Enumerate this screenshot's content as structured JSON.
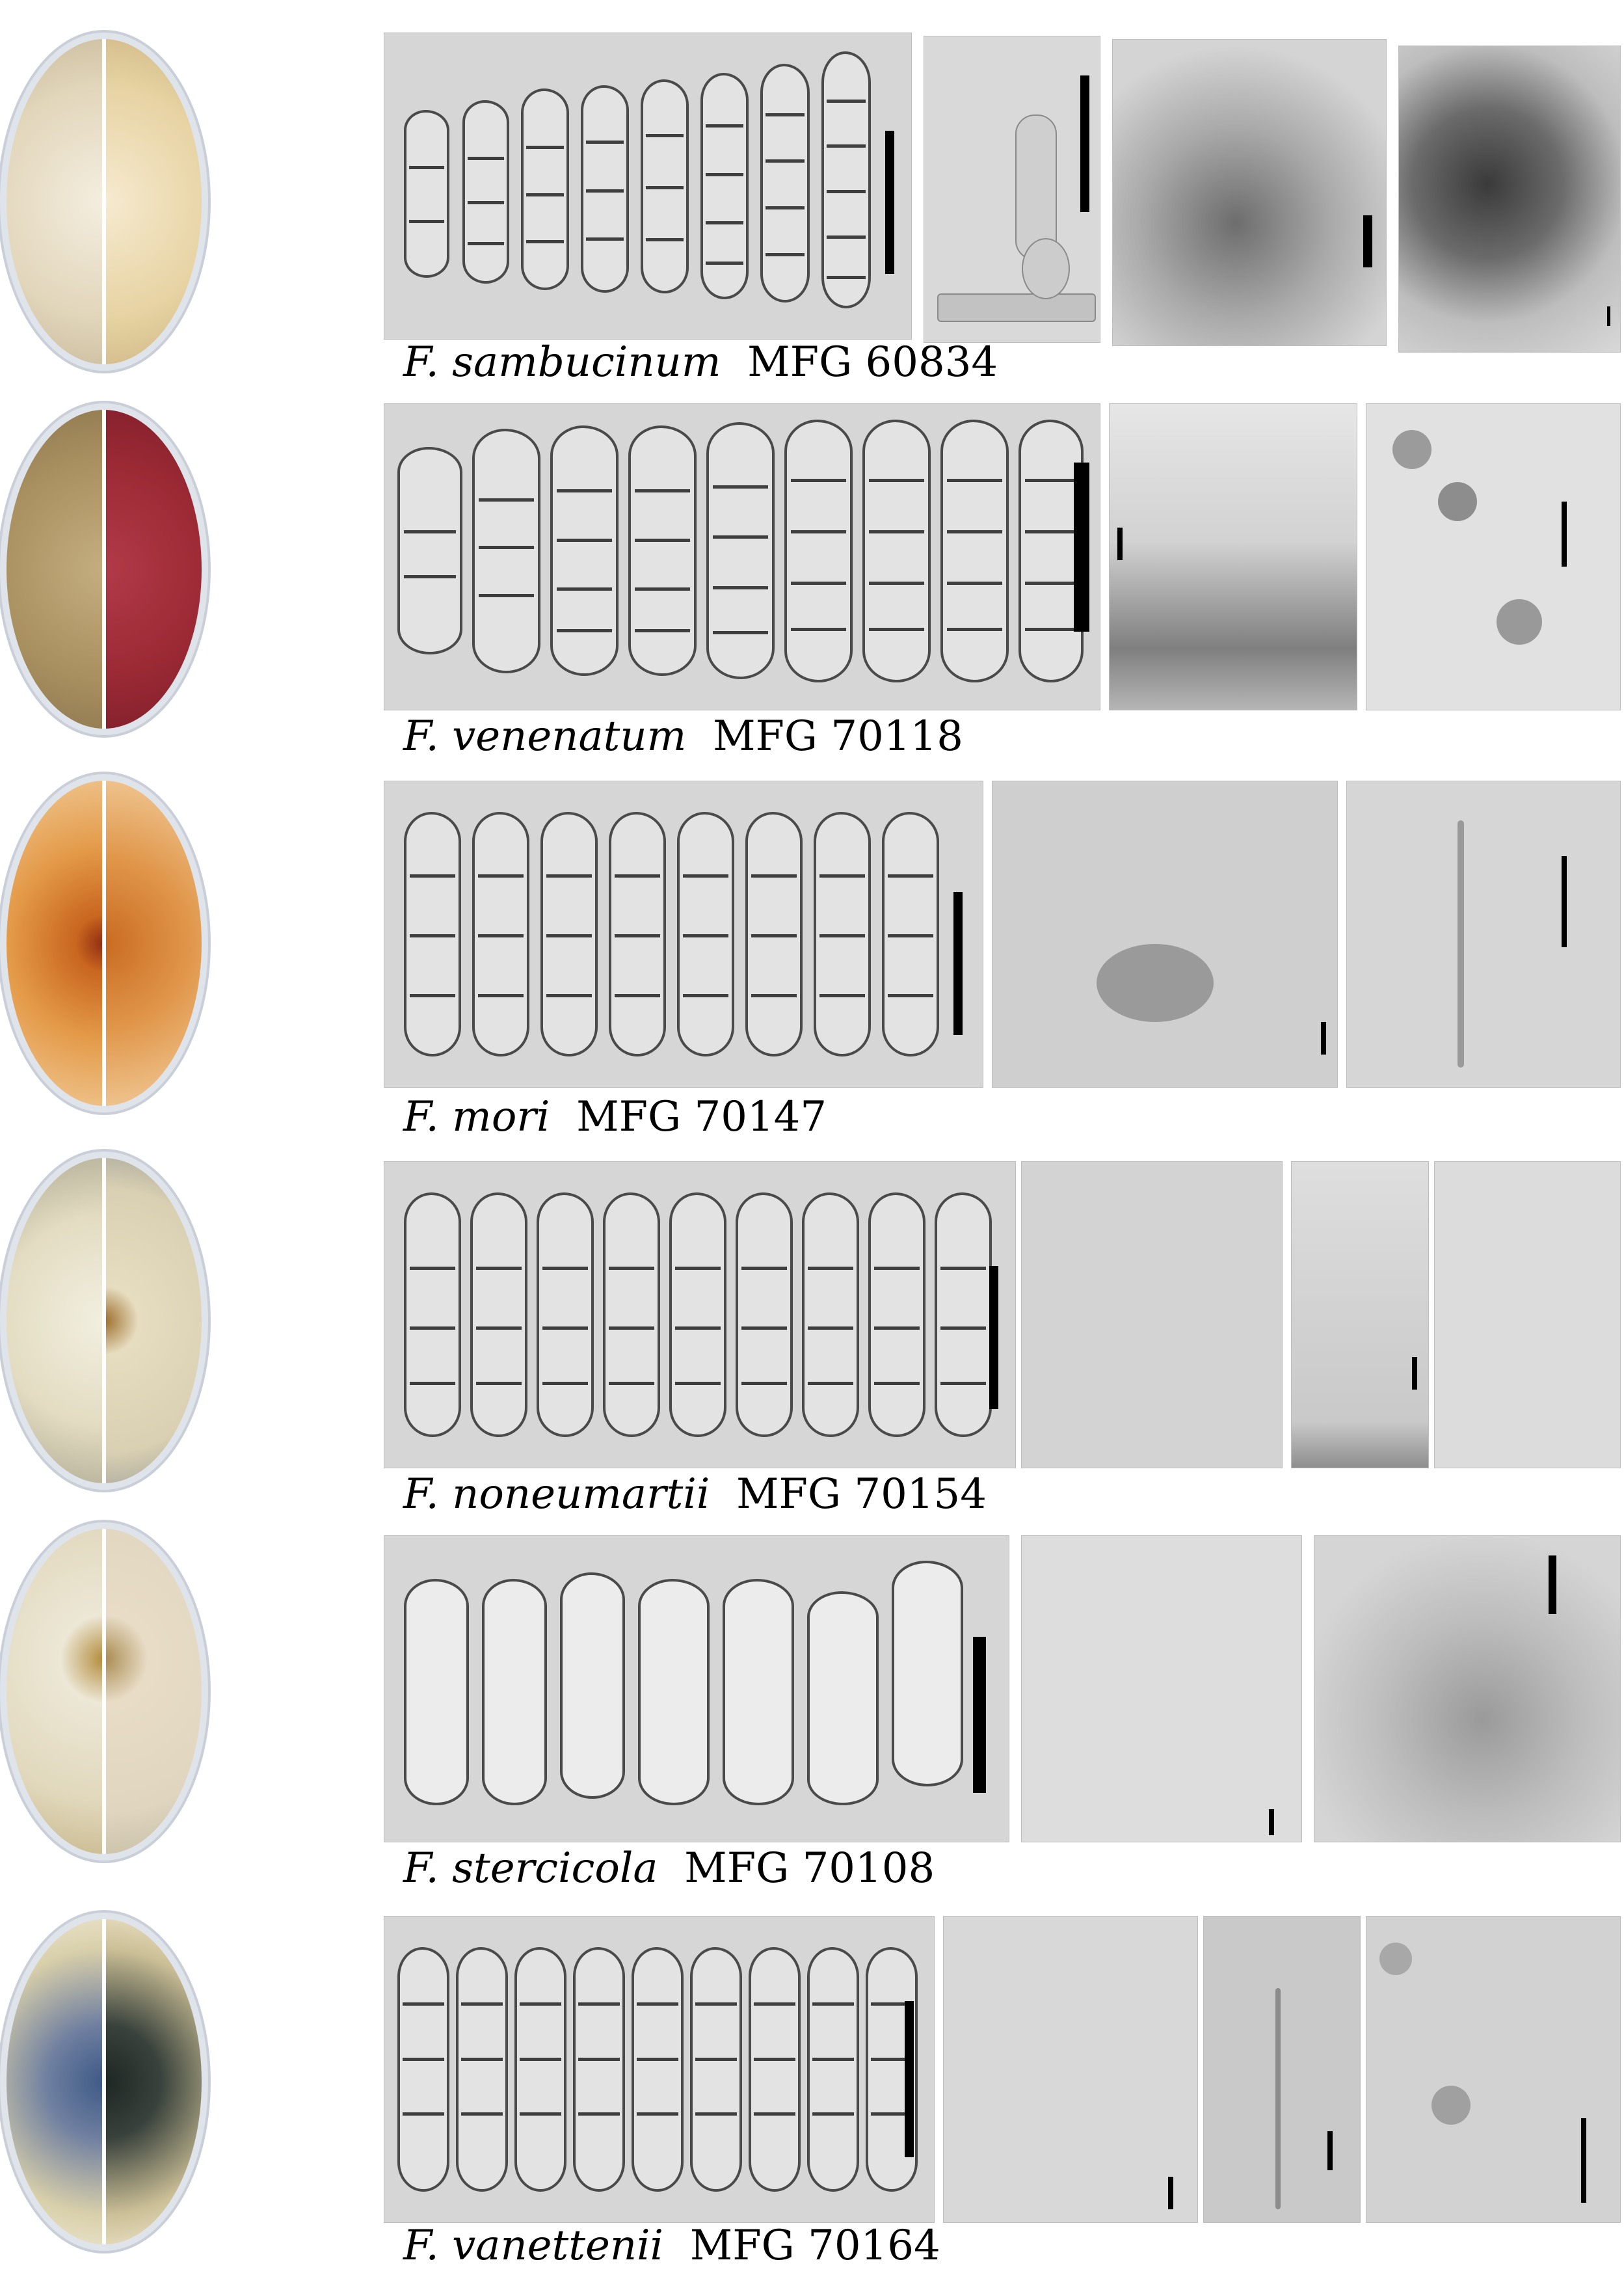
{
  "rows": [
    {
      "species": "F. sambucinum",
      "code": "MFG 60834",
      "colony_left": "#e6dcc3",
      "colony_right": "#e8d6a6",
      "spore_count": 8
    },
    {
      "species": "F. venenatum",
      "code": "MFG 70118",
      "colony_left": "#b59a6c",
      "colony_right": "#9c2a35",
      "spore_count": 9
    },
    {
      "species": "F. mori",
      "code": "MFG 70147",
      "colony_left": "#d98a3a",
      "colony_right": "#d8913f",
      "spore_count": 8
    },
    {
      "species": "F. noneumartii",
      "code": "MFG 70154",
      "colony_left": "#e8e3c8",
      "colony_right": "#e6dcbf",
      "spore_count": 9
    },
    {
      "species": "F. stercicola",
      "code": "MFG 70108",
      "colony_left": "#e4dec6",
      "colony_right": "#e3dac4",
      "spore_count": 7
    },
    {
      "species": "F. vanettenii",
      "code": "MFG 70164",
      "colony_left": "#6f7fa0",
      "colony_right": "#39423c",
      "spore_count": 9
    }
  ]
}
